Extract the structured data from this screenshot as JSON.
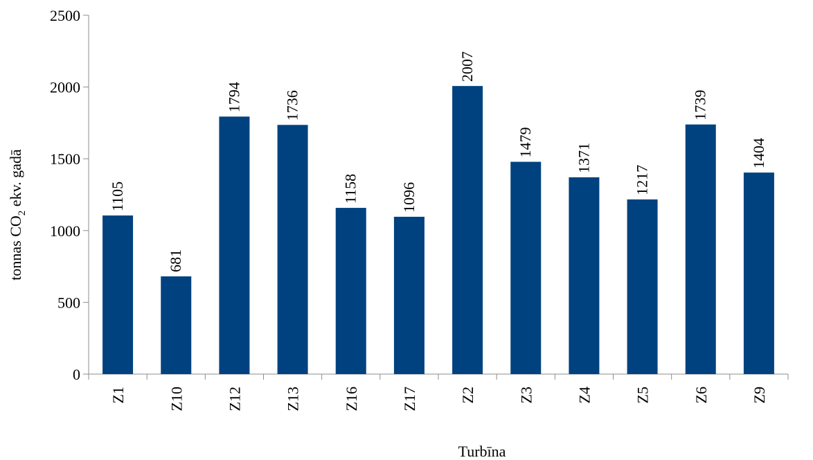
{
  "chart_data": {
    "type": "bar",
    "categories": [
      "Z1",
      "Z10",
      "Z12",
      "Z13",
      "Z16",
      "Z17",
      "Z2",
      "Z3",
      "Z4",
      "Z5",
      "Z6",
      "Z9"
    ],
    "values": [
      1105,
      681,
      1794,
      1736,
      1158,
      1096,
      2007,
      1479,
      1371,
      1217,
      1739,
      1404
    ],
    "data_labels": [
      "1105",
      "681",
      "1794",
      "1736",
      "1158",
      "1096",
      "2007",
      "1479",
      "1371",
      "1217",
      "1739",
      "1404"
    ],
    "title": "",
    "xlabel": "Turbīna",
    "ylabel": {
      "before": "tonnas CO",
      "sub": "2",
      "after": " ekv. gadā"
    },
    "ylim": [
      0,
      2500
    ],
    "yticks": [
      "0",
      "500",
      "1000",
      "1500",
      "2000",
      "2500"
    ],
    "grid": false,
    "bar_color": "#00427f"
  }
}
